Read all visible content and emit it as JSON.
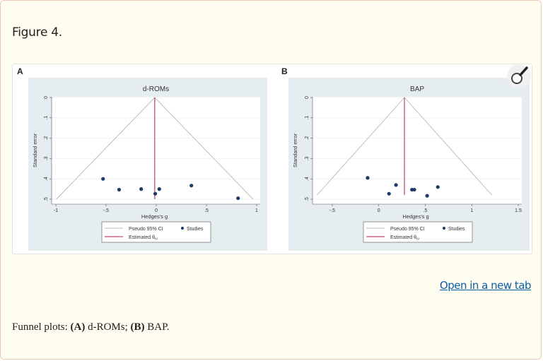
{
  "figure": {
    "title": "Figure 4.",
    "open_link": "Open in a new tab",
    "caption": {
      "prefix": "Funnel plots: ",
      "a_label": "(A)",
      "a_text": " d-ROMs; ",
      "b_label": "(B)",
      "b_text": " BAP."
    },
    "zoom_icon": "magnifier-icon"
  },
  "colors": {
    "chart_bg": "#e6edf1",
    "studies": "#1b3a66",
    "estimate_line": "#b01d4a",
    "pseudo_ci": "#b8b8b8",
    "link": "#0b5ea8"
  },
  "chart_data": [
    {
      "panel_label": "A",
      "type": "scatter",
      "subtype": "funnel",
      "title": "d-ROMs",
      "xlabel": "Hedges's g",
      "ylabel": "Standard error",
      "xlim": [
        -1,
        1
      ],
      "ylim": [
        0,
        0.5
      ],
      "y_reversed": true,
      "xticks": [
        "-1",
        "-.5",
        "0",
        ".5",
        "1"
      ],
      "xtick_values": [
        -1,
        -0.5,
        0,
        0.5,
        1
      ],
      "yticks": [
        "0",
        ".1",
        ".2",
        ".3",
        ".4",
        ".5"
      ],
      "ytick_values": [
        0,
        0.1,
        0.2,
        0.3,
        0.4,
        0.5
      ],
      "grid": true,
      "estimate": -0.015,
      "funnel_max_se": 0.5,
      "studies": [
        {
          "x": -0.53,
          "y": 0.4
        },
        {
          "x": -0.37,
          "y": 0.453
        },
        {
          "x": -0.15,
          "y": 0.45
        },
        {
          "x": -0.01,
          "y": 0.473
        },
        {
          "x": 0.03,
          "y": 0.45
        },
        {
          "x": 0.35,
          "y": 0.433
        },
        {
          "x": 0.815,
          "y": 0.495
        }
      ],
      "legend": {
        "ci": "Pseudo 95% CI",
        "studies": "Studies",
        "estimate": "Estimated θ",
        "estimate_sub": "IV",
        "position": "bottom"
      }
    },
    {
      "panel_label": "B",
      "type": "scatter",
      "subtype": "funnel",
      "title": "BAP",
      "xlabel": "Hedges's g",
      "ylabel": "Standard error",
      "xlim": [
        -0.6,
        1.55
      ],
      "ylim": [
        0,
        0.5
      ],
      "y_reversed": true,
      "xticks": [
        "-.5",
        "0",
        ".5",
        "1",
        "1.5"
      ],
      "xtick_values": [
        -0.5,
        0,
        0.5,
        1,
        1.5
      ],
      "yticks": [
        "0",
        ".1",
        ".2",
        ".3",
        ".4",
        ".5"
      ],
      "ytick_values": [
        0,
        0.1,
        0.2,
        0.3,
        0.4,
        0.5
      ],
      "grid": true,
      "estimate": 0.276,
      "funnel_max_se": 0.48,
      "studies": [
        {
          "x": -0.12,
          "y": 0.395
        },
        {
          "x": 0.11,
          "y": 0.473
        },
        {
          "x": 0.185,
          "y": 0.43
        },
        {
          "x": 0.357,
          "y": 0.453
        },
        {
          "x": 0.382,
          "y": 0.453
        },
        {
          "x": 0.52,
          "y": 0.483
        },
        {
          "x": 0.635,
          "y": 0.44
        }
      ],
      "legend": {
        "ci": "Pseudo 95% CI",
        "studies": "Studies",
        "estimate": "Estimated θ",
        "estimate_sub": "IV",
        "position": "bottom"
      }
    }
  ]
}
